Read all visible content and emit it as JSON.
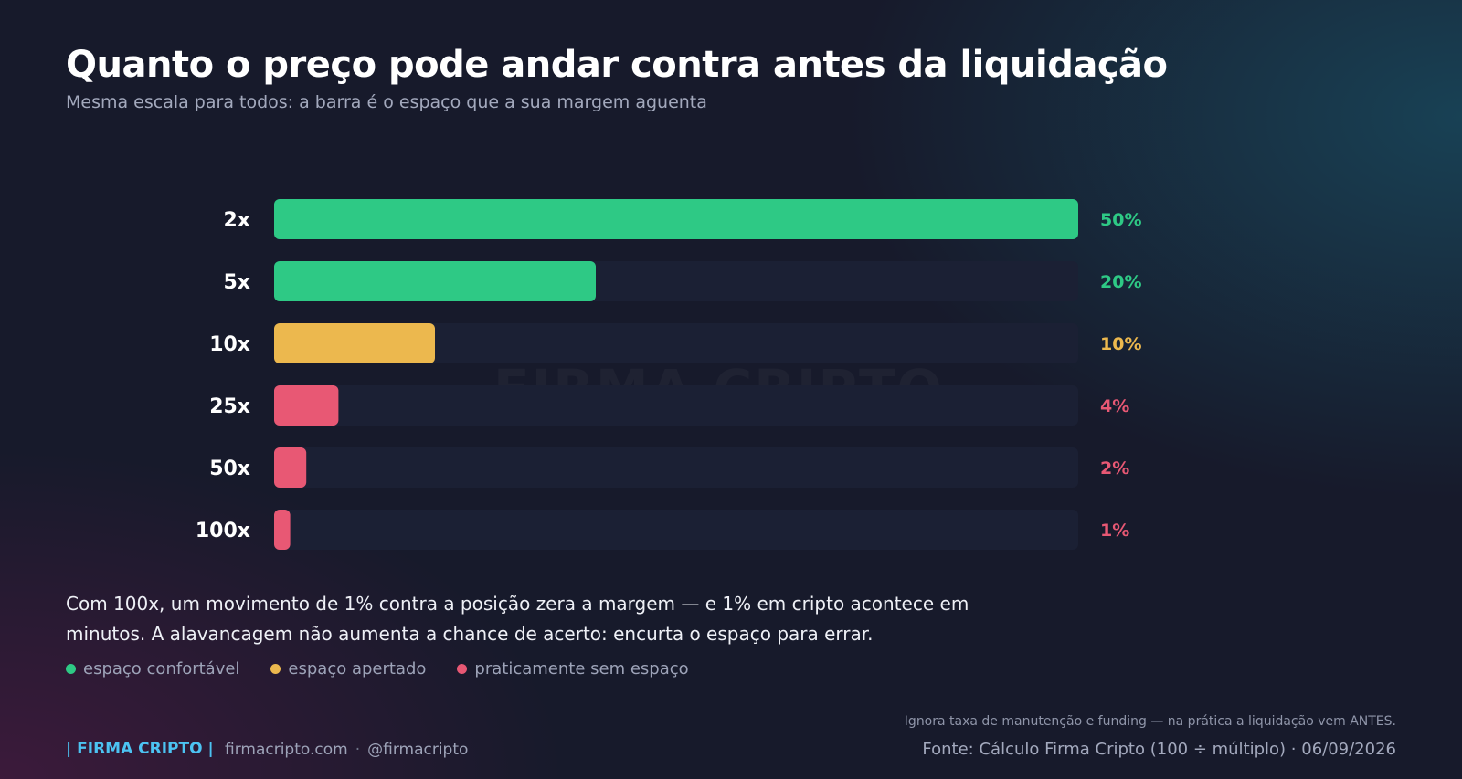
{
  "header": {
    "title": "Quanto o preço pode andar contra antes da liquidação",
    "subtitle": "Mesma escala para todos: a barra é o espaço que a sua margem aguenta"
  },
  "watermark": "FIRMA CRIPTO",
  "colors": {
    "comfortable": "#2ec985",
    "tight": "#ecb84e",
    "none": "#e85874",
    "track": "#1b2034"
  },
  "chart_data": {
    "type": "bar",
    "orientation": "horizontal",
    "categories": [
      "2x",
      "5x",
      "10x",
      "25x",
      "50x",
      "100x"
    ],
    "values": [
      50,
      20,
      10,
      4,
      2,
      1
    ],
    "value_labels": [
      "50%",
      "20%",
      "10%",
      "4%",
      "2%",
      "1%"
    ],
    "status": [
      "comfortable",
      "comfortable",
      "tight",
      "none",
      "none",
      "none"
    ],
    "xlim": [
      0,
      50
    ],
    "grid": false
  },
  "note": "Com 100x, um movimento de 1% contra a posição zera a margem — e 1% em cripto acontece em minutos. A alavancagem não aumenta a chance de acerto: encurta o espaço para errar.",
  "legend": [
    {
      "label": "espaço confortável",
      "color": "#2ec985"
    },
    {
      "label": "espaço apertado",
      "color": "#ecb84e"
    },
    {
      "label": "praticamente sem espaço",
      "color": "#e85874"
    }
  ],
  "footer": {
    "brand": "| FIRMA CRIPTO |",
    "site": "firmacripto.com",
    "separator": "·",
    "handle": "@firmacripto",
    "footnote": "Ignora taxa de manutenção e funding — na prática a liquidação vem ANTES.",
    "source": "Fonte: Cálculo Firma Cripto (100 ÷ múltiplo)  ·  06/09/2026"
  }
}
